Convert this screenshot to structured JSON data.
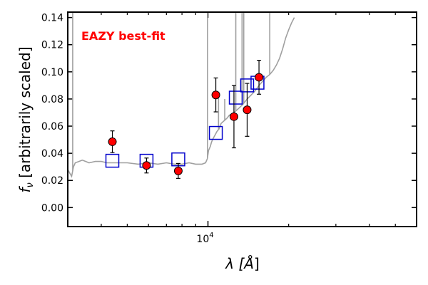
{
  "chart_data": {
    "type": "scatter",
    "title": "",
    "xlabel_prefix": "λ [",
    "xlabel_unit": "Å",
    "xlabel_suffix": "]",
    "ylabel": "f_ν [arbitrarily scaled]",
    "ylabel_symbol": "f",
    "ylabel_sub": "ν",
    "ylabel_text": " [arbitrarily scaled]",
    "x_scale": "log",
    "xlim": [
      3000,
      60000
    ],
    "ylim": [
      -0.014,
      0.144
    ],
    "y_ticks": [
      0.0,
      0.02,
      0.04,
      0.06,
      0.08,
      0.1,
      0.12,
      0.14
    ],
    "y_tick_labels": [
      "0.00",
      "0.02",
      "0.04",
      "0.06",
      "0.08",
      "0.10",
      "0.12",
      "0.14"
    ],
    "x_major_ticks": [
      10000
    ],
    "x_major_tick_labels": [
      {
        "base": "10",
        "exp": "4"
      }
    ],
    "x_minor_ticks": [
      4000,
      5000,
      6000,
      7000,
      8000,
      9000,
      20000,
      30000,
      40000,
      50000
    ],
    "grid": false,
    "annotation": {
      "text": "EAZY best-fit",
      "color": "#ff0000",
      "placement": "top-left"
    },
    "colors": {
      "observed": "#ff0000",
      "model_photometry": "#0000cc",
      "sed": "#a0a0a0"
    },
    "series": [
      {
        "kind": "observed",
        "x": [
          4400,
          5900,
          7750,
          10700,
          12500,
          14000,
          15500
        ],
        "y": [
          0.0485,
          0.031,
          0.027,
          0.083,
          0.067,
          0.072,
          0.096
        ],
        "yerr": [
          0.008,
          0.0055,
          0.0055,
          0.0125,
          0.023,
          0.0195,
          0.0125
        ]
      },
      {
        "kind": "model_photometry",
        "x": [
          4400,
          5900,
          7750,
          10700,
          12700,
          14000,
          15300
        ],
        "y": [
          0.0345,
          0.0345,
          0.0355,
          0.055,
          0.081,
          0.09,
          0.092
        ]
      },
      {
        "kind": "sed_line",
        "x": [
          3000,
          3060,
          3100,
          3150,
          3200,
          3300,
          3400,
          3500,
          3600,
          3800,
          4000,
          4200,
          4500,
          5000,
          5500,
          6000,
          6500,
          7000,
          7500,
          8000,
          8500,
          9000,
          9500,
          9800,
          9950,
          10000,
          10050,
          10200,
          10300,
          10400,
          10600,
          10800,
          11000,
          11200,
          11500,
          11800,
          12000,
          12500,
          13000,
          13500,
          14000,
          14500,
          15000,
          15500,
          16000,
          16500,
          17000,
          17500,
          18000,
          18500,
          19000,
          19500,
          20000,
          20500,
          21000
        ],
        "y": [
          0.028,
          0.025,
          0.023,
          0.03,
          0.033,
          0.034,
          0.035,
          0.034,
          0.033,
          0.034,
          0.034,
          0.033,
          0.033,
          0.033,
          0.032,
          0.033,
          0.032,
          0.033,
          0.032,
          0.032,
          0.033,
          0.032,
          0.032,
          0.033,
          0.036,
          0.039,
          0.042,
          0.045,
          0.048,
          0.05,
          0.053,
          0.056,
          0.058,
          0.062,
          0.064,
          0.066,
          0.068,
          0.07,
          0.073,
          0.076,
          0.08,
          0.083,
          0.086,
          0.09,
          0.093,
          0.096,
          0.098,
          0.101,
          0.105,
          0.11,
          0.117,
          0.125,
          0.131,
          0.136,
          0.14
        ]
      },
      {
        "kind": "emission_lines",
        "x": [
          3130,
          9960,
          10950,
          11550,
          12700,
          13400,
          13600,
          17000
        ],
        "y_top": [
          0.144,
          0.144,
          0.084,
          0.08,
          0.144,
          0.144,
          0.144,
          0.144
        ]
      }
    ]
  }
}
